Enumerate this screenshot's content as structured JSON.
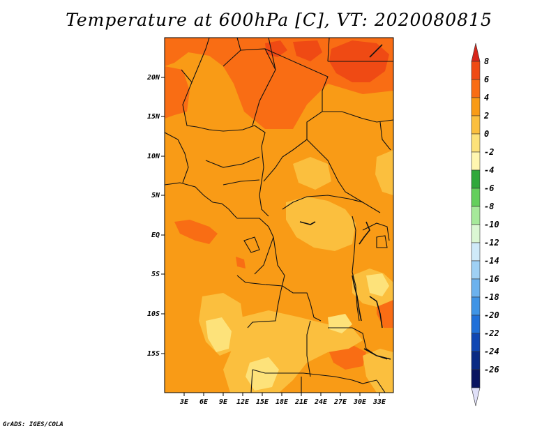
{
  "title": "Temperature at 600hPa [C], VT: 2020080815",
  "credit": "GrADS: IGES/COLA",
  "map": {
    "lat_labels": [
      "20N",
      "15N",
      "10N",
      "5N",
      "EQ",
      "5S",
      "10S",
      "15S"
    ],
    "lon_labels": [
      "3E",
      "6E",
      "9E",
      "12E",
      "15E",
      "18E",
      "21E",
      "24E",
      "27E",
      "30E",
      "33E"
    ]
  },
  "colorbar": {
    "labels": [
      "8",
      "6",
      "4",
      "2",
      "0",
      "-2",
      "-4",
      "-6",
      "-8",
      "-10",
      "-12",
      "-14",
      "-16",
      "-18",
      "-20",
      "-22",
      "-24",
      "-26"
    ],
    "colors": [
      "#d7261b",
      "#ef4a14",
      "#f96d14",
      "#f99b16",
      "#fbbf3e",
      "#fde27a",
      "#fff6b0",
      "#2fa83a",
      "#64cf5c",
      "#a6e99a",
      "#dbf7d3",
      "#cfeaf9",
      "#9fd0f4",
      "#6cb2ee",
      "#3f94e6",
      "#2070d9",
      "#0f46b3",
      "#0a2a84",
      "#0a1460",
      "#e0e0f8"
    ]
  },
  "colors": {
    "field_main": "#f99b16",
    "field_warm": "#f96d14",
    "field_hot": "#ef4a14",
    "field_mild": "#fbbf3e",
    "field_cool": "#fde27a"
  }
}
